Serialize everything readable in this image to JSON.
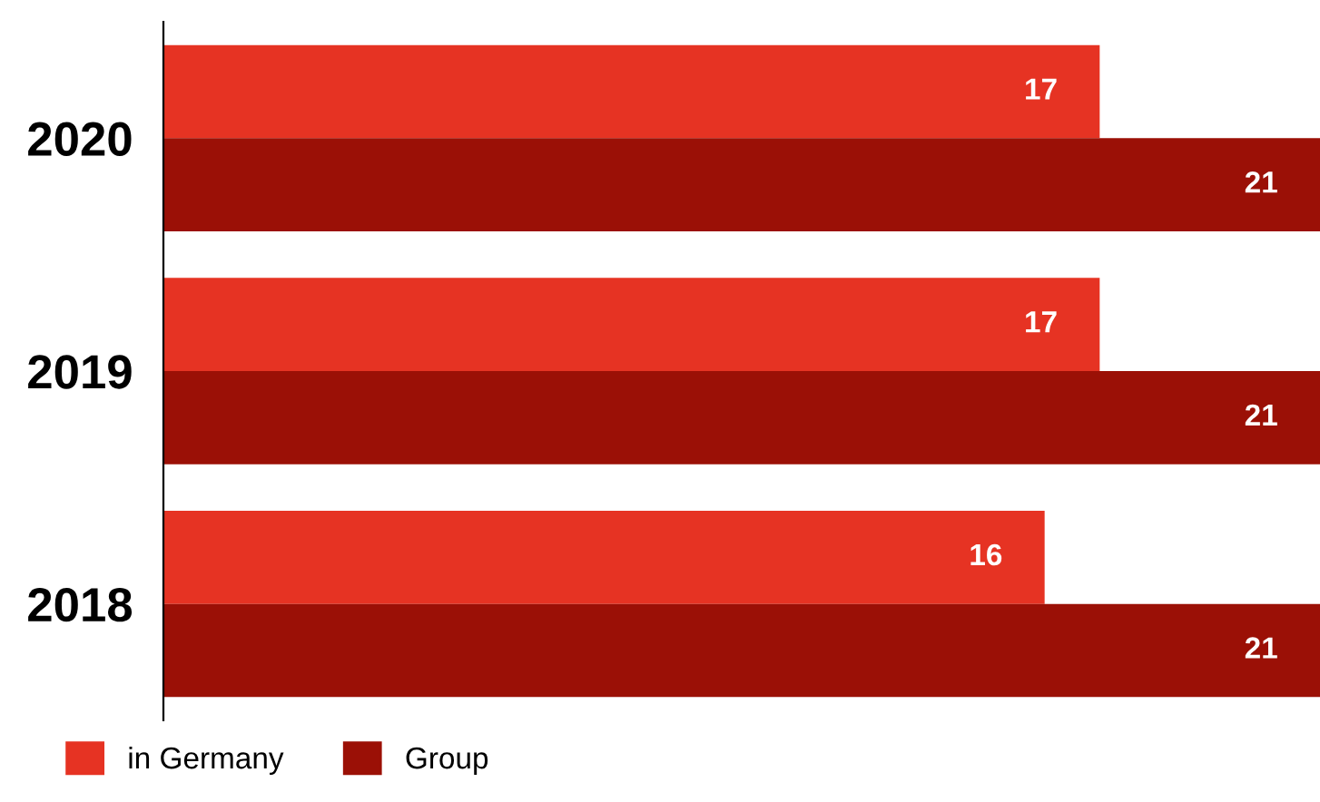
{
  "chart_data": {
    "type": "bar",
    "orientation": "horizontal",
    "categories": [
      "2020",
      "2019",
      "2018"
    ],
    "series": [
      {
        "name": "in Germany",
        "color": "#e63323",
        "values": [
          17,
          17,
          16
        ]
      },
      {
        "name": "Group",
        "color": "#9b1006",
        "values": [
          21,
          21,
          21
        ]
      }
    ],
    "data_labels": true,
    "legend": "bottom left",
    "grid": false
  }
}
